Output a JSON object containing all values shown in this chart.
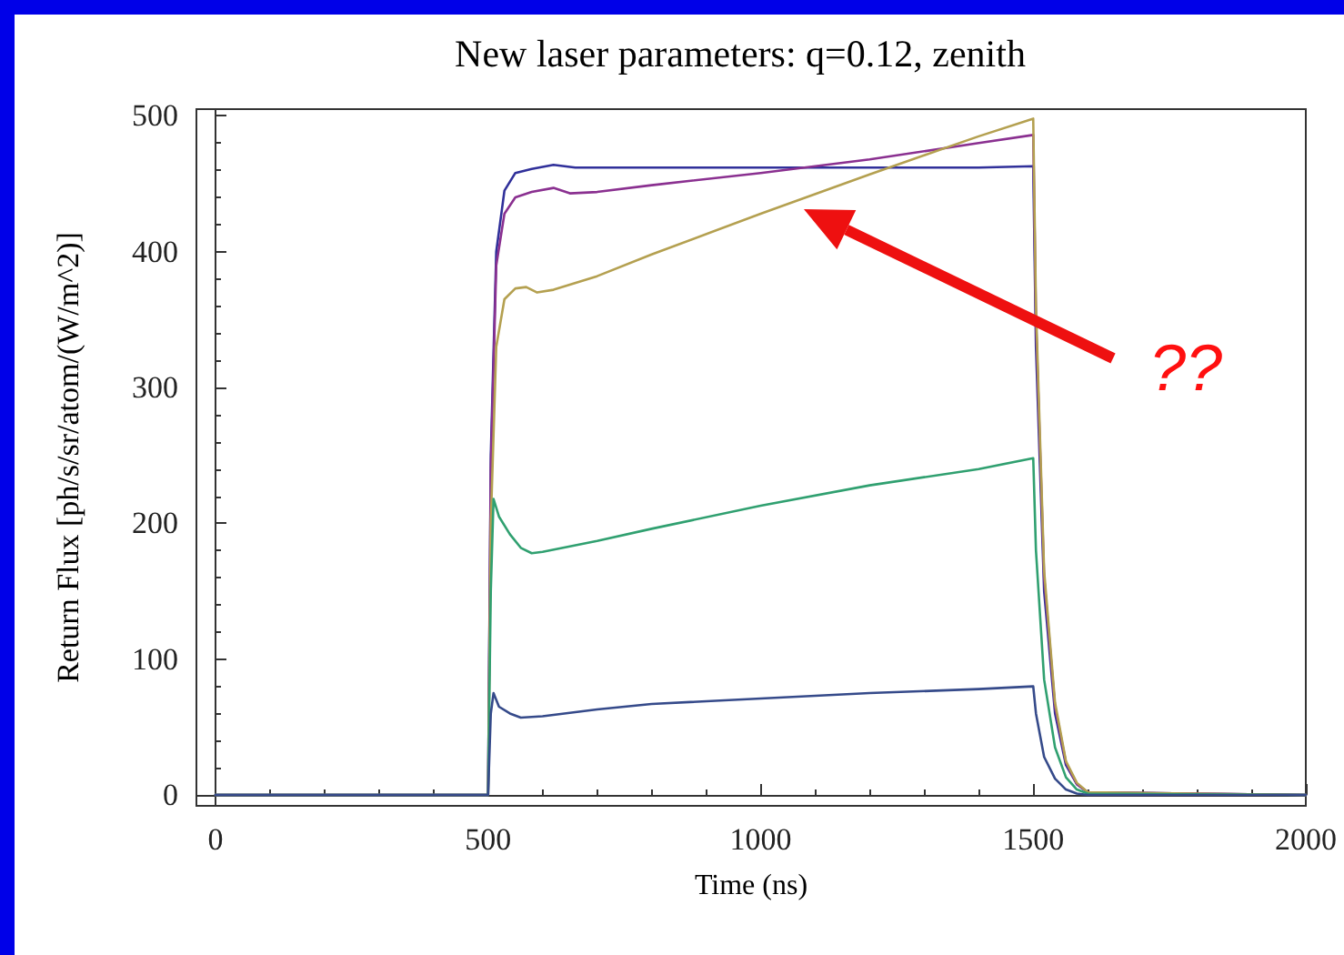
{
  "chart_data": {
    "type": "line",
    "title": "New laser parameters: q=0.12, zenith",
    "xlabel": "Time (ns)",
    "ylabel": "Return Flux [ph/s/sr/atom/(W/m^2)]",
    "xlim": [
      -35,
      2000
    ],
    "xticks": [
      0,
      500,
      1000,
      1500,
      2000
    ],
    "ylim": [
      -8,
      505
    ],
    "yticks": [
      0,
      100,
      200,
      300,
      400,
      500
    ],
    "marker": "none",
    "line_style": "solid",
    "annotations": [
      "??"
    ],
    "series": [
      {
        "color": "#30309a",
        "x": [
          0,
          500,
          505,
          515,
          530,
          550,
          580,
          620,
          660,
          800,
          1000,
          1200,
          1400,
          1500,
          1505,
          1520,
          1540,
          1560,
          1580,
          1600,
          2000
        ],
        "values": [
          0,
          0,
          250,
          400,
          445,
          458,
          461,
          464,
          462,
          462,
          462,
          462,
          462,
          463,
          330,
          150,
          60,
          22,
          8,
          2,
          0
        ]
      },
      {
        "color": "#8a3090",
        "x": [
          0,
          500,
          505,
          515,
          530,
          550,
          580,
          620,
          650,
          700,
          800,
          1000,
          1200,
          1400,
          1500,
          1505,
          1520,
          1540,
          1560,
          1580,
          1600,
          2000
        ],
        "values": [
          0,
          0,
          240,
          390,
          428,
          440,
          444,
          447,
          443,
          444,
          449,
          458,
          468,
          480,
          486,
          350,
          160,
          65,
          24,
          8,
          2,
          0
        ]
      },
      {
        "color": "#b4a050",
        "x": [
          0,
          500,
          505,
          515,
          530,
          550,
          570,
          590,
          620,
          700,
          800,
          1000,
          1200,
          1400,
          1500,
          1505,
          1520,
          1540,
          1560,
          1580,
          1600,
          2000
        ],
        "values": [
          0,
          0,
          200,
          330,
          365,
          373,
          374,
          370,
          372,
          382,
          398,
          428,
          457,
          485,
          498,
          360,
          165,
          68,
          25,
          9,
          2,
          0
        ]
      },
      {
        "color": "#30a070",
        "x": [
          0,
          500,
          505,
          510,
          520,
          540,
          560,
          580,
          600,
          700,
          800,
          1000,
          1200,
          1400,
          1500,
          1505,
          1520,
          1540,
          1560,
          1580,
          1600,
          2000
        ],
        "values": [
          0,
          0,
          150,
          218,
          205,
          192,
          182,
          178,
          179,
          187,
          196,
          213,
          228,
          240,
          248,
          180,
          85,
          35,
          13,
          4,
          1,
          0
        ]
      },
      {
        "color": "#354a8a",
        "x": [
          0,
          500,
          505,
          510,
          520,
          540,
          560,
          600,
          700,
          800,
          1000,
          1200,
          1400,
          1500,
          1505,
          1520,
          1540,
          1560,
          1580,
          1600,
          2000
        ],
        "values": [
          0,
          0,
          60,
          75,
          65,
          60,
          57,
          58,
          63,
          67,
          71,
          75,
          78,
          80,
          60,
          28,
          12,
          4,
          1,
          0,
          0
        ]
      }
    ]
  }
}
